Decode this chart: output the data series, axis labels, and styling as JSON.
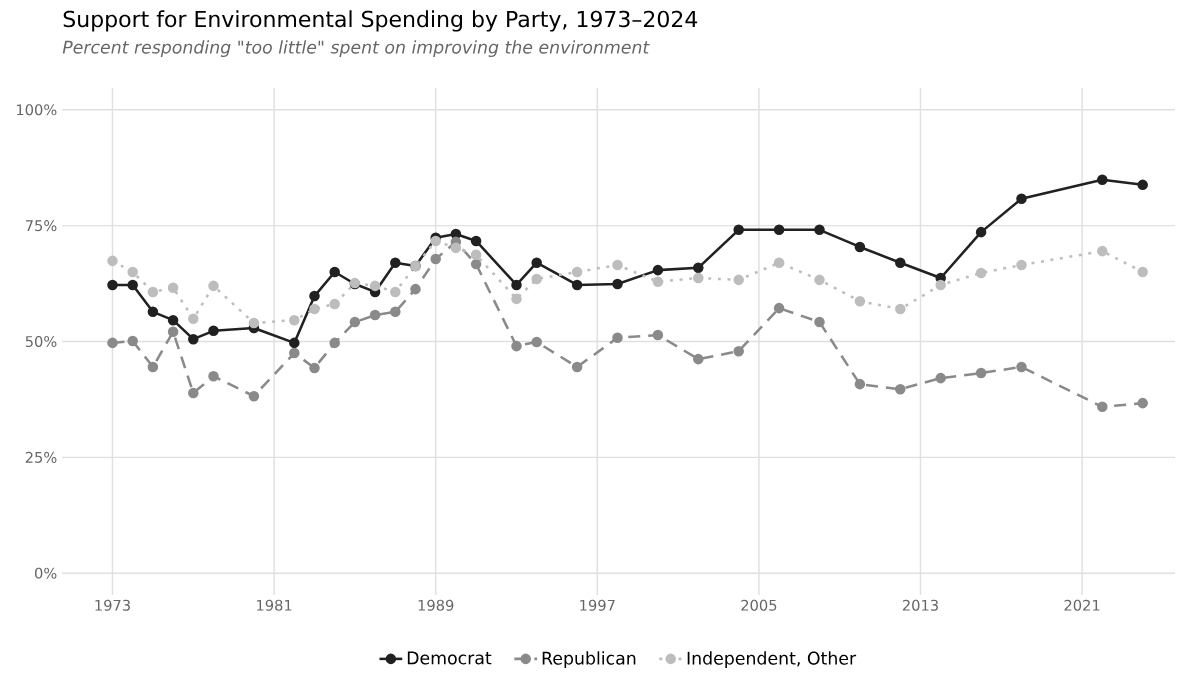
{
  "chart_data": {
    "type": "line",
    "title": "Support for Environmental Spending by Party, 1973–2024",
    "subtitle": "Percent responding \"too little\" spent on improving the environment",
    "x": [
      1973,
      1974,
      1975,
      1976,
      1977,
      1978,
      1980,
      1982,
      1983,
      1984,
      1985,
      1986,
      1987,
      1988,
      1989,
      1990,
      1991,
      1993,
      1994,
      1996,
      1998,
      2000,
      2002,
      2004,
      2006,
      2008,
      2010,
      2012,
      2014,
      2016,
      2018,
      2022,
      2024
    ],
    "series": [
      {
        "name": "Democrat",
        "color": "#212121",
        "line_style": "solid",
        "values": [
          62.2,
          62.2,
          56.4,
          54.6,
          50.5,
          52.3,
          52.9,
          49.7,
          59.8,
          65.0,
          62.4,
          60.7,
          67.0,
          66.3,
          72.4,
          73.2,
          71.7,
          62.2,
          67.0,
          62.2,
          62.4,
          65.4,
          65.9,
          74.1,
          74.1,
          74.1,
          70.4,
          67.0,
          63.7,
          73.6,
          80.8,
          84.9,
          83.8
        ]
      },
      {
        "name": "Republican",
        "color": "#8a8a8a",
        "line_style": "dashed",
        "values": [
          49.7,
          50.1,
          44.5,
          52.1,
          38.9,
          42.5,
          38.2,
          47.5,
          44.3,
          49.7,
          54.2,
          55.7,
          56.4,
          61.3,
          67.8,
          71.5,
          66.7,
          49.0,
          49.9,
          44.5,
          50.8,
          51.4,
          46.2,
          47.9,
          57.2,
          54.2,
          40.8,
          39.7,
          42.1,
          43.2,
          44.5,
          35.9,
          36.7
        ]
      },
      {
        "name": "Independent, Other",
        "color": "#bdbdbd",
        "line_style": "dotted",
        "values": [
          67.4,
          65.0,
          60.7,
          61.6,
          54.9,
          62.0,
          54.0,
          54.6,
          57.0,
          58.1,
          62.6,
          62.0,
          60.7,
          66.3,
          71.7,
          70.2,
          68.7,
          59.2,
          63.5,
          65.0,
          66.5,
          62.9,
          63.7,
          63.3,
          67.0,
          63.3,
          58.7,
          57.0,
          62.2,
          64.8,
          66.5,
          69.5,
          65.0
        ]
      }
    ],
    "xlim": [
      1970.5,
      2025.6
    ],
    "xticks": [
      1973,
      1981,
      1989,
      1997,
      2005,
      2013,
      2021
    ],
    "ylim": [
      -4.7,
      104.7
    ],
    "yticks": [
      {
        "value": 0,
        "label": "0%"
      },
      {
        "value": 25,
        "label": "25%"
      },
      {
        "value": 50,
        "label": "50%"
      },
      {
        "value": 75,
        "label": "75%"
      },
      {
        "value": 100,
        "label": "100%"
      }
    ],
    "grid": true,
    "legend": "bottom",
    "marker": "circle"
  }
}
